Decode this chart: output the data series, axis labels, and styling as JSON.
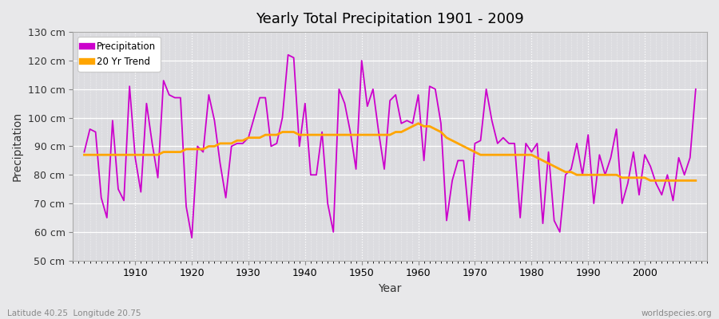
{
  "title": "Yearly Total Precipitation 1901 - 2009",
  "xlabel": "Year",
  "ylabel": "Precipitation",
  "lat_label": "Latitude 40.25  Longitude 20.75",
  "source_label": "worldspecies.org",
  "line_color": "#CC00CC",
  "trend_color": "#FFA500",
  "bg_color": "#E8E8EA",
  "plot_bg_color": "#DCDCE0",
  "ylim": [
    50,
    130
  ],
  "yticks": [
    50,
    60,
    70,
    80,
    90,
    100,
    110,
    120,
    130
  ],
  "xticks": [
    1910,
    1920,
    1930,
    1940,
    1950,
    1960,
    1970,
    1980,
    1990,
    2000
  ],
  "years": [
    1901,
    1902,
    1903,
    1904,
    1905,
    1906,
    1907,
    1908,
    1909,
    1910,
    1911,
    1912,
    1913,
    1914,
    1915,
    1916,
    1917,
    1918,
    1919,
    1920,
    1921,
    1922,
    1923,
    1924,
    1925,
    1926,
    1927,
    1928,
    1929,
    1930,
    1931,
    1932,
    1933,
    1934,
    1935,
    1936,
    1937,
    1938,
    1939,
    1940,
    1941,
    1942,
    1943,
    1944,
    1945,
    1946,
    1947,
    1948,
    1949,
    1950,
    1951,
    1952,
    1953,
    1954,
    1955,
    1956,
    1957,
    1958,
    1959,
    1960,
    1961,
    1962,
    1963,
    1964,
    1965,
    1966,
    1967,
    1968,
    1969,
    1970,
    1971,
    1972,
    1973,
    1974,
    1975,
    1976,
    1977,
    1978,
    1979,
    1980,
    1981,
    1982,
    1983,
    1984,
    1985,
    1986,
    1987,
    1988,
    1989,
    1990,
    1991,
    1992,
    1993,
    1994,
    1995,
    1996,
    1997,
    1998,
    1999,
    2000,
    2001,
    2002,
    2003,
    2004,
    2005,
    2006,
    2007,
    2008,
    2009
  ],
  "precip": [
    88,
    96,
    95,
    72,
    65,
    99,
    75,
    71,
    111,
    86,
    74,
    105,
    91,
    79,
    113,
    108,
    107,
    107,
    69,
    58,
    90,
    88,
    108,
    99,
    84,
    72,
    90,
    91,
    91,
    93,
    100,
    107,
    107,
    90,
    91,
    100,
    122,
    121,
    90,
    105,
    80,
    80,
    95,
    70,
    60,
    110,
    105,
    95,
    82,
    120,
    104,
    110,
    95,
    82,
    106,
    108,
    98,
    99,
    98,
    108,
    85,
    111,
    110,
    98,
    64,
    78,
    85,
    85,
    64,
    91,
    92,
    110,
    99,
    91,
    93,
    91,
    91,
    65,
    91,
    88,
    91,
    63,
    88,
    64,
    60,
    80,
    82,
    91,
    80,
    94,
    70,
    87,
    80,
    86,
    96,
    70,
    77,
    88,
    73,
    87,
    83,
    77,
    73,
    80,
    71,
    86,
    80,
    86,
    110
  ],
  "trend": [
    87,
    87,
    87,
    87,
    87,
    87,
    87,
    87,
    87,
    87,
    87,
    87,
    87,
    87,
    88,
    88,
    88,
    88,
    89,
    89,
    89,
    89,
    90,
    90,
    91,
    91,
    91,
    92,
    92,
    93,
    93,
    93,
    94,
    94,
    94,
    95,
    95,
    95,
    94,
    94,
    94,
    94,
    94,
    94,
    94,
    94,
    94,
    94,
    94,
    94,
    94,
    94,
    94,
    94,
    94,
    95,
    95,
    96,
    97,
    98,
    97,
    97,
    96,
    95,
    93,
    92,
    91,
    90,
    89,
    88,
    87,
    87,
    87,
    87,
    87,
    87,
    87,
    87,
    87,
    87,
    86,
    85,
    84,
    83,
    82,
    81,
    81,
    80,
    80,
    80,
    80,
    80,
    80,
    80,
    80,
    79,
    79,
    79,
    79,
    79,
    78,
    78,
    78,
    78,
    78,
    78,
    78,
    78,
    78
  ]
}
